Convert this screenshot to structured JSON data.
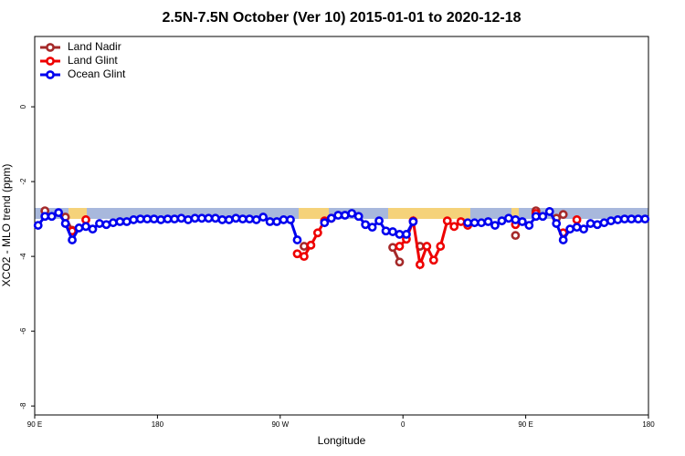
{
  "chart_data": {
    "type": "line",
    "title": "2.5N-7.5N October (Ver 10)   2015-01-01 to 2020-12-18",
    "xlabel": "Longitude",
    "ylabel": "XCO2 - MLO trend (ppm)",
    "xlim": [
      90,
      540
    ],
    "ylim": [
      -8.24,
      1.88
    ],
    "xticks": [
      {
        "value": 90,
        "label": "90 E"
      },
      180,
      {
        "value": 270,
        "label": "90 W"
      },
      {
        "value": 360,
        "label": "0"
      },
      {
        "value": 450,
        "label": "90 E"
      },
      {
        "value": 540,
        "label": "180"
      }
    ],
    "yticks": [
      0,
      -2,
      -4,
      -6,
      -8
    ],
    "legend": "top-left",
    "x": [
      92.5,
      97.5,
      102.5,
      107.5,
      112.5,
      117.5,
      122.5,
      127.5,
      132.5,
      137.5,
      142.5,
      147.5,
      152.5,
      157.5,
      162.5,
      167.5,
      172.5,
      177.5,
      182.5,
      187.5,
      192.5,
      197.5,
      202.5,
      207.5,
      212.5,
      217.5,
      222.5,
      227.5,
      232.5,
      237.5,
      242.5,
      247.5,
      252.5,
      257.5,
      262.5,
      267.5,
      272.5,
      277.5,
      282.5,
      287.5,
      292.5,
      297.5,
      302.5,
      307.5,
      312.5,
      317.5,
      322.5,
      327.5,
      332.5,
      337.5,
      342.5,
      347.5,
      352.5,
      357.5,
      362.5,
      367.5,
      372.5,
      377.5,
      382.5,
      387.5,
      392.5,
      397.5,
      402.5,
      407.5,
      412.5,
      417.5,
      422.5,
      427.5,
      432.5,
      437.5,
      442.5,
      447.5,
      452.5,
      457.5,
      462.5,
      467.5,
      472.5,
      477.5,
      482.5,
      487.5,
      492.5,
      497.5,
      502.5,
      507.5,
      512.5,
      517.5,
      522.5,
      527.5,
      532.5,
      537.5
    ],
    "series": [
      {
        "name": "Land Nadir",
        "color": "#a52a2a",
        "values": [
          null,
          -2.78,
          null,
          null,
          -2.95,
          -3.3,
          null,
          null,
          null,
          null,
          null,
          null,
          null,
          null,
          null,
          null,
          null,
          null,
          null,
          null,
          null,
          null,
          null,
          null,
          null,
          null,
          null,
          null,
          null,
          null,
          null,
          null,
          null,
          null,
          null,
          null,
          null,
          null,
          null,
          -3.73,
          null,
          null,
          null,
          null,
          null,
          null,
          null,
          null,
          null,
          null,
          null,
          null,
          -3.76,
          -4.15,
          null,
          null,
          -3.73,
          null,
          null,
          null,
          null,
          null,
          null,
          null,
          null,
          null,
          null,
          null,
          null,
          null,
          -3.44,
          null,
          null,
          -2.78,
          null,
          null,
          -2.98,
          -2.88,
          null,
          null,
          null,
          null,
          null,
          null,
          null,
          null,
          null,
          null,
          null,
          null
        ]
      },
      {
        "name": "Land Glint",
        "color": "#ee0000",
        "values": [
          null,
          null,
          null,
          null,
          null,
          -3.32,
          null,
          -3.02,
          null,
          null,
          null,
          null,
          null,
          null,
          null,
          null,
          null,
          null,
          null,
          null,
          null,
          null,
          null,
          null,
          null,
          null,
          null,
          null,
          null,
          null,
          null,
          null,
          null,
          null,
          null,
          null,
          null,
          null,
          -3.93,
          -4.0,
          -3.7,
          -3.37,
          -3.05,
          -2.98,
          null,
          null,
          null,
          null,
          null,
          null,
          null,
          null,
          null,
          -3.73,
          -3.54,
          -3.05,
          -4.22,
          -3.73,
          -4.1,
          -3.73,
          -3.05,
          -3.2,
          -3.07,
          -3.17,
          null,
          null,
          null,
          null,
          null,
          null,
          -3.15,
          null,
          null,
          -2.85,
          null,
          null,
          null,
          -3.37,
          null,
          -3.02,
          null,
          null,
          null,
          null,
          null,
          null,
          null,
          null,
          null,
          null
        ]
      },
      {
        "name": "Ocean Glint",
        "color": "#0000ee",
        "values": [
          -3.17,
          -2.93,
          -2.93,
          -2.83,
          -3.12,
          -3.56,
          -3.24,
          -3.2,
          -3.27,
          -3.12,
          -3.15,
          -3.1,
          -3.07,
          -3.07,
          -3.02,
          -3.0,
          -3.0,
          -3.0,
          -3.02,
          -3.0,
          -3.0,
          -2.98,
          -3.02,
          -2.98,
          -2.98,
          -2.98,
          -2.98,
          -3.02,
          -3.02,
          -2.98,
          -3.0,
          -3.0,
          -3.02,
          -2.95,
          -3.07,
          -3.07,
          -3.02,
          -3.02,
          -3.56,
          null,
          null,
          null,
          -3.1,
          -2.98,
          -2.9,
          -2.9,
          -2.85,
          -2.93,
          -3.15,
          -3.22,
          -3.05,
          -3.32,
          -3.34,
          -3.41,
          -3.41,
          -3.07,
          null,
          null,
          null,
          null,
          null,
          null,
          null,
          -3.1,
          -3.1,
          -3.1,
          -3.07,
          -3.17,
          -3.05,
          -2.98,
          -3.02,
          -3.07,
          -3.17,
          -2.93,
          -2.93,
          -2.8,
          -3.12,
          -3.56,
          -3.27,
          -3.22,
          -3.27,
          -3.12,
          -3.15,
          -3.1,
          -3.05,
          -3.02,
          -3.0,
          -3.0,
          -3.0,
          -3.0
        ]
      }
    ]
  }
}
